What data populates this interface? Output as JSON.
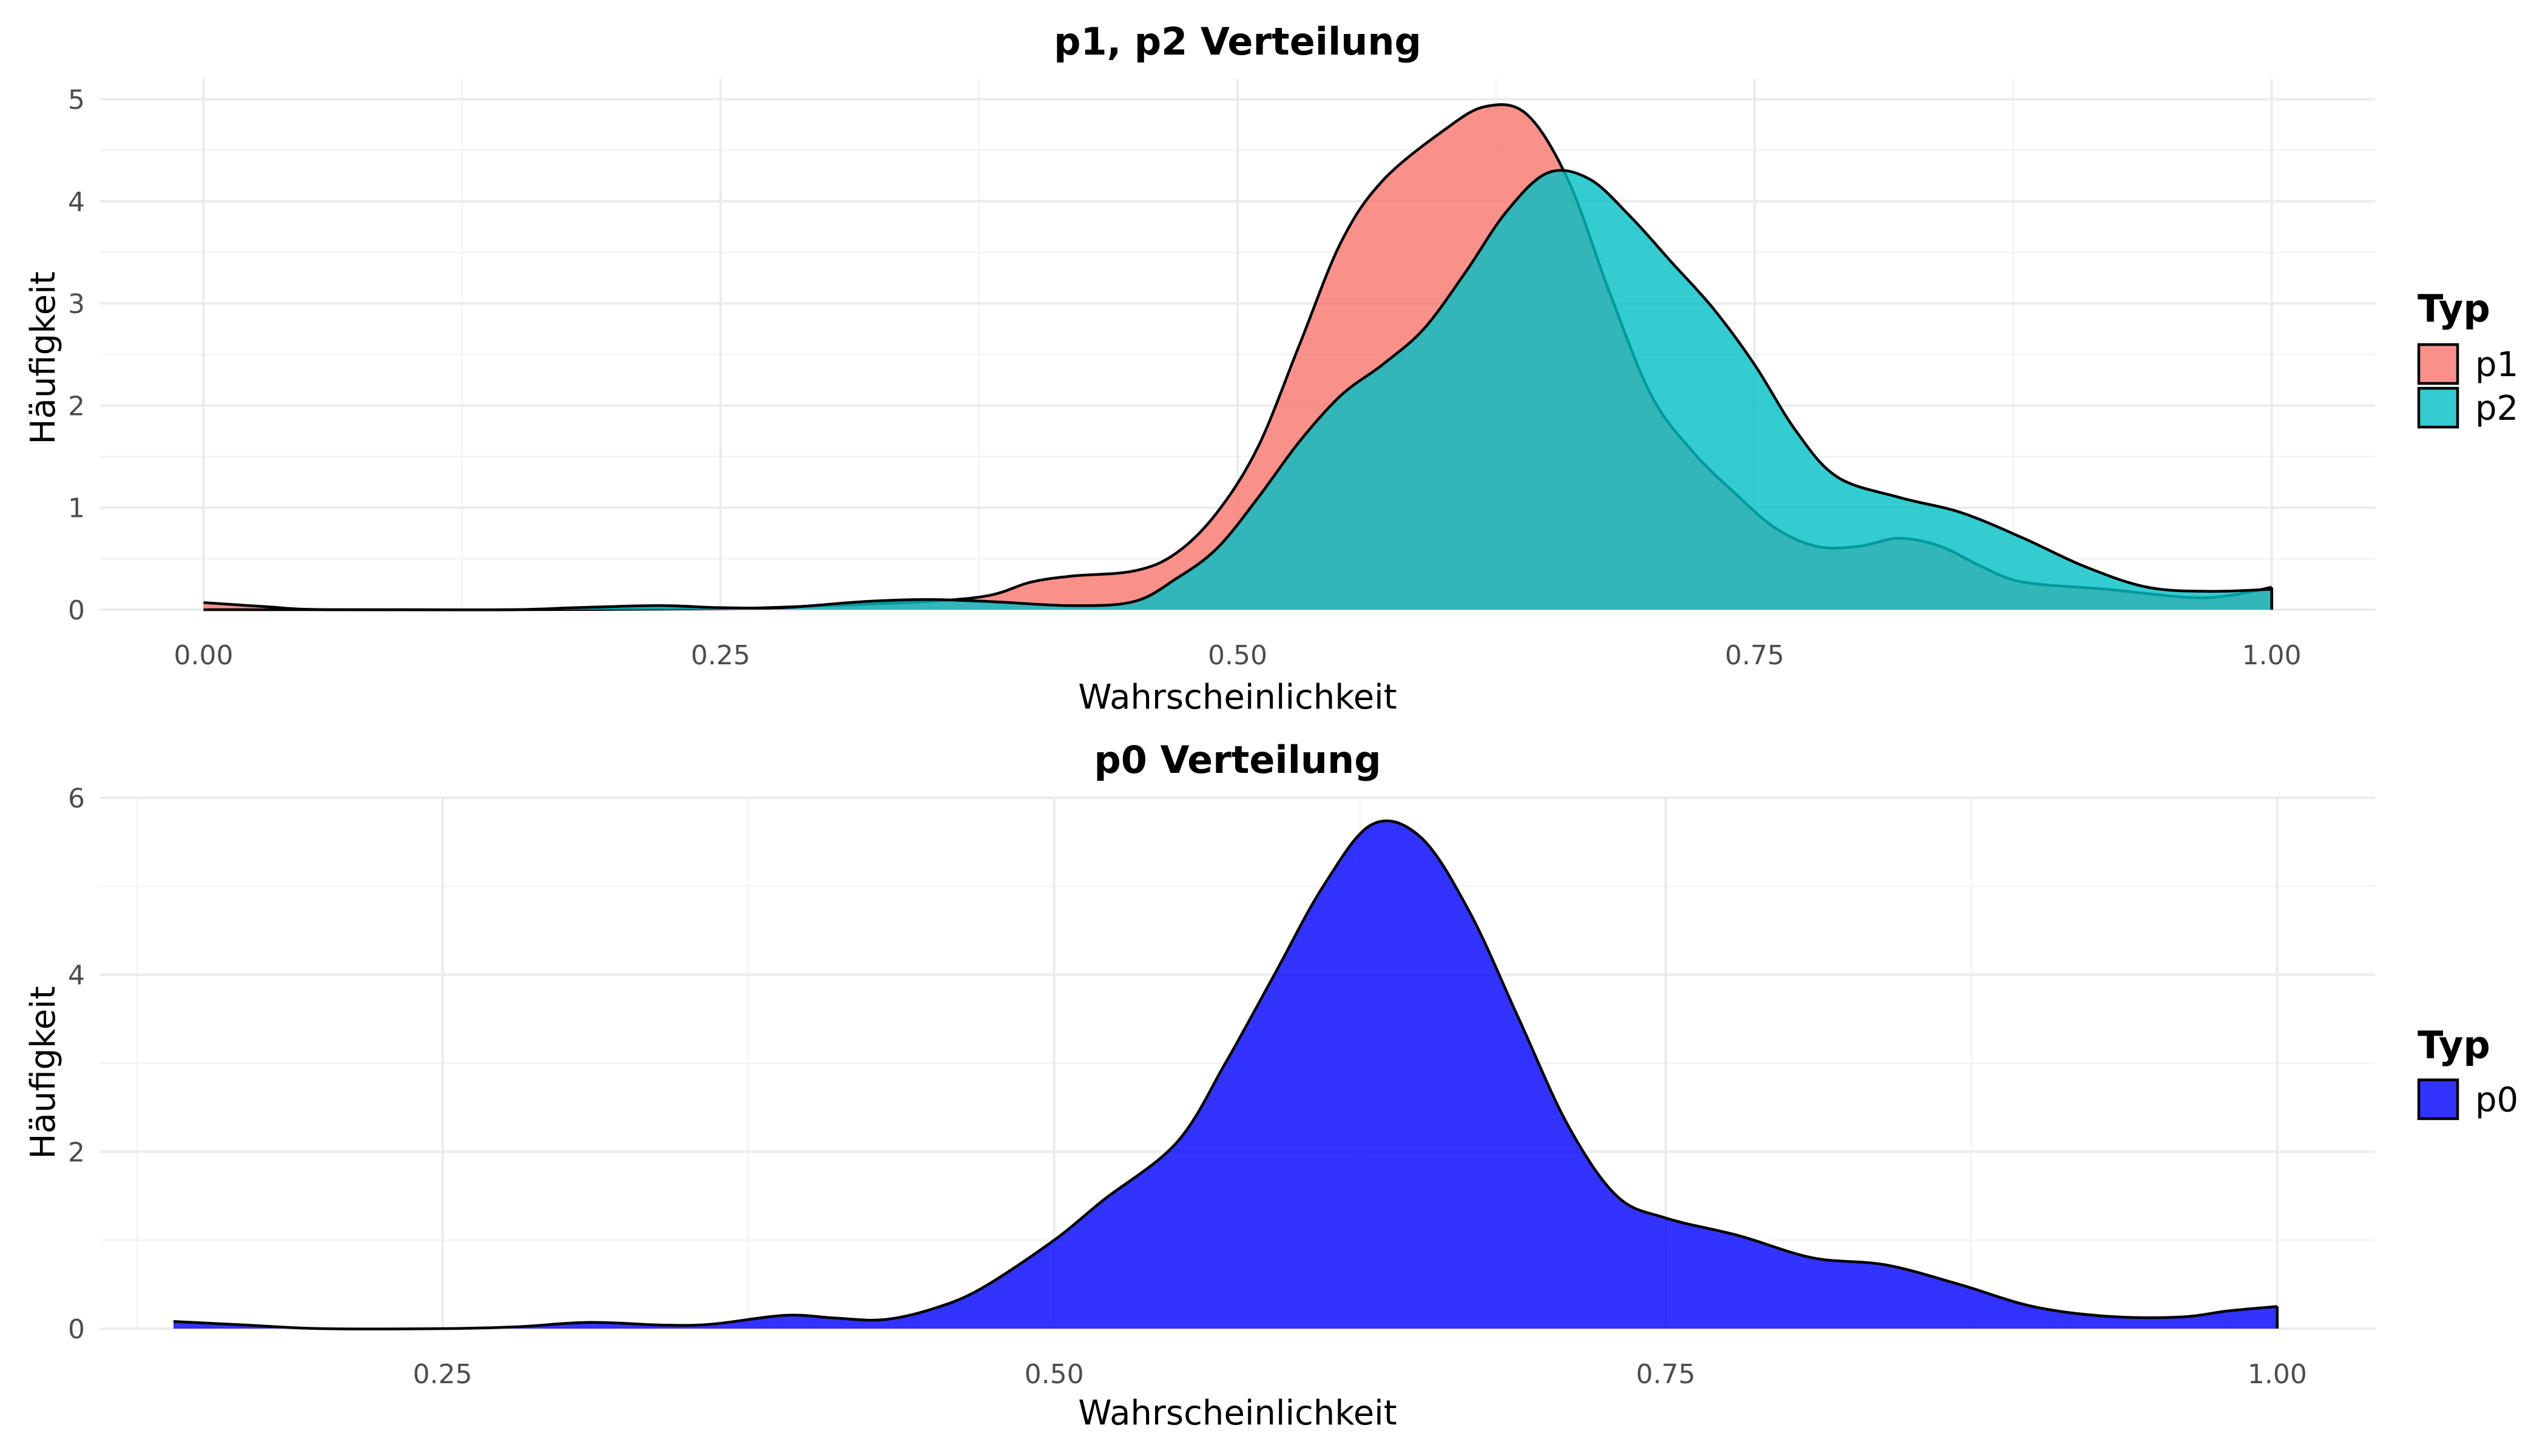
{
  "chart_data": [
    {
      "type": "area",
      "title": "p1, p2 Verteilung",
      "xlabel": "Wahrscheinlichkeit",
      "ylabel": "Häufigkeit",
      "xlim": [
        -0.05,
        1.05
      ],
      "ylim": [
        0,
        5.2
      ],
      "xticks": [
        0,
        0.25,
        0.5,
        0.75,
        1
      ],
      "xtick_labels": [
        "0.00",
        "0.25",
        "0.50",
        "0.75",
        "1.00"
      ],
      "yticks": [
        0,
        1,
        2,
        3,
        4,
        5
      ],
      "ytick_labels": [
        "0",
        "1",
        "2",
        "3",
        "4",
        "5"
      ],
      "grid": true,
      "legend": {
        "title": "Typ",
        "position": "right"
      },
      "series": [
        {
          "name": "p1",
          "color": "#F8766D",
          "opacity": 0.8,
          "points": [
            [
              0,
              0.07
            ],
            [
              0.03,
              0.03
            ],
            [
              0.06,
              0
            ],
            [
              0.15,
              0
            ],
            [
              0.25,
              0.01
            ],
            [
              0.3,
              0.04
            ],
            [
              0.35,
              0.08
            ],
            [
              0.38,
              0.14
            ],
            [
              0.4,
              0.27
            ],
            [
              0.42,
              0.33
            ],
            [
              0.45,
              0.38
            ],
            [
              0.47,
              0.55
            ],
            [
              0.49,
              0.95
            ],
            [
              0.51,
              1.6
            ],
            [
              0.53,
              2.6
            ],
            [
              0.55,
              3.6
            ],
            [
              0.57,
              4.2
            ],
            [
              0.6,
              4.7
            ],
            [
              0.62,
              4.93
            ],
            [
              0.64,
              4.85
            ],
            [
              0.66,
              4.2
            ],
            [
              0.68,
              3.1
            ],
            [
              0.7,
              2.1
            ],
            [
              0.72,
              1.55
            ],
            [
              0.74,
              1.15
            ],
            [
              0.76,
              0.8
            ],
            [
              0.78,
              0.62
            ],
            [
              0.8,
              0.62
            ],
            [
              0.82,
              0.7
            ],
            [
              0.84,
              0.62
            ],
            [
              0.86,
              0.42
            ],
            [
              0.88,
              0.27
            ],
            [
              0.92,
              0.2
            ],
            [
              0.96,
              0.12
            ],
            [
              0.98,
              0.14
            ],
            [
              1,
              0.22
            ]
          ]
        },
        {
          "name": "p2",
          "color": "#00BFC4",
          "opacity": 0.8,
          "points": [
            [
              0,
              0
            ],
            [
              0.1,
              0
            ],
            [
              0.15,
              0
            ],
            [
              0.18,
              0.02
            ],
            [
              0.22,
              0.04
            ],
            [
              0.25,
              0.02
            ],
            [
              0.28,
              0.02
            ],
            [
              0.32,
              0.08
            ],
            [
              0.35,
              0.1
            ],
            [
              0.38,
              0.08
            ],
            [
              0.42,
              0.04
            ],
            [
              0.45,
              0.08
            ],
            [
              0.47,
              0.3
            ],
            [
              0.49,
              0.6
            ],
            [
              0.51,
              1.1
            ],
            [
              0.53,
              1.65
            ],
            [
              0.55,
              2.1
            ],
            [
              0.57,
              2.4
            ],
            [
              0.59,
              2.75
            ],
            [
              0.61,
              3.3
            ],
            [
              0.63,
              3.9
            ],
            [
              0.65,
              4.28
            ],
            [
              0.67,
              4.22
            ],
            [
              0.69,
              3.85
            ],
            [
              0.71,
              3.4
            ],
            [
              0.73,
              2.95
            ],
            [
              0.75,
              2.4
            ],
            [
              0.77,
              1.75
            ],
            [
              0.79,
              1.3
            ],
            [
              0.82,
              1.1
            ],
            [
              0.85,
              0.95
            ],
            [
              0.88,
              0.7
            ],
            [
              0.91,
              0.42
            ],
            [
              0.94,
              0.22
            ],
            [
              0.97,
              0.18
            ],
            [
              1,
              0.2
            ]
          ]
        }
      ]
    },
    {
      "type": "area",
      "title": "p0 Verteilung",
      "xlabel": "Wahrscheinlichkeit",
      "ylabel": "Häufigkeit",
      "xlim": [
        0.11,
        1.04
      ],
      "ylim": [
        0,
        6
      ],
      "xticks": [
        0.25,
        0.5,
        0.75,
        1
      ],
      "xtick_labels": [
        "0.25",
        "0.50",
        "0.75",
        "1.00"
      ],
      "yticks": [
        0,
        2,
        4,
        6
      ],
      "ytick_labels": [
        "0",
        "2",
        "4",
        "6"
      ],
      "grid": true,
      "legend": {
        "title": "Typ",
        "position": "right"
      },
      "series": [
        {
          "name": "p0",
          "color": "#0000FF",
          "opacity": 0.8,
          "points": [
            [
              0.14,
              0.08
            ],
            [
              0.17,
              0.04
            ],
            [
              0.2,
              0
            ],
            [
              0.25,
              0
            ],
            [
              0.28,
              0.02
            ],
            [
              0.31,
              0.07
            ],
            [
              0.34,
              0.04
            ],
            [
              0.36,
              0.05
            ],
            [
              0.39,
              0.15
            ],
            [
              0.41,
              0.12
            ],
            [
              0.43,
              0.1
            ],
            [
              0.45,
              0.22
            ],
            [
              0.47,
              0.45
            ],
            [
              0.5,
              1
            ],
            [
              0.52,
              1.45
            ],
            [
              0.55,
              2.1
            ],
            [
              0.57,
              3.0
            ],
            [
              0.59,
              4.0
            ],
            [
              0.61,
              5.0
            ],
            [
              0.63,
              5.7
            ],
            [
              0.65,
              5.55
            ],
            [
              0.67,
              4.7
            ],
            [
              0.69,
              3.5
            ],
            [
              0.71,
              2.3
            ],
            [
              0.73,
              1.5
            ],
            [
              0.75,
              1.25
            ],
            [
              0.78,
              1.05
            ],
            [
              0.81,
              0.8
            ],
            [
              0.84,
              0.72
            ],
            [
              0.87,
              0.5
            ],
            [
              0.9,
              0.25
            ],
            [
              0.93,
              0.14
            ],
            [
              0.96,
              0.13
            ],
            [
              0.98,
              0.2
            ],
            [
              1,
              0.25
            ]
          ]
        }
      ]
    }
  ]
}
